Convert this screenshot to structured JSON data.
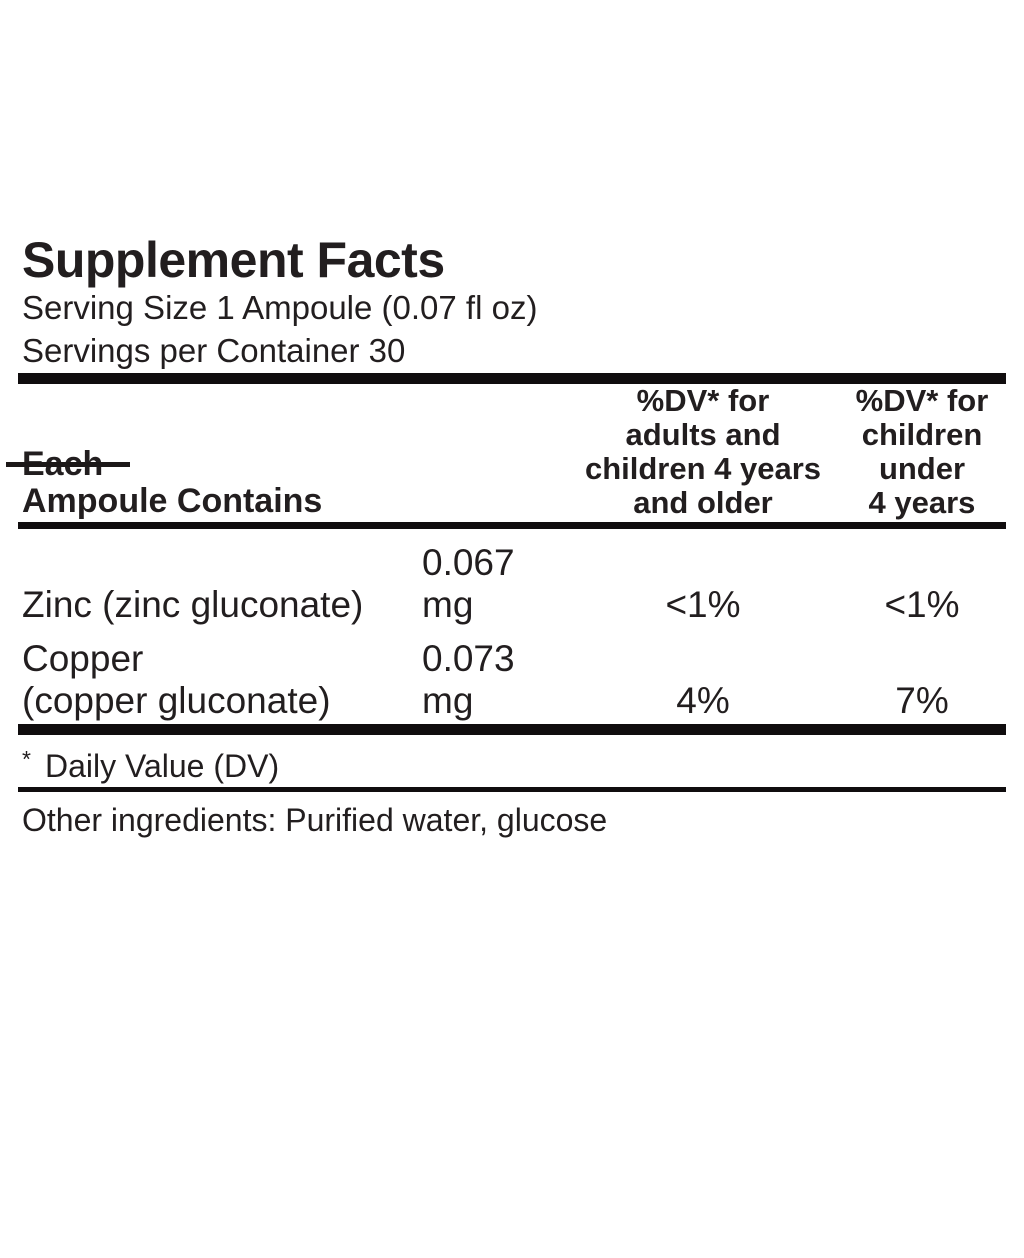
{
  "colors": {
    "background": "#ffffff",
    "text": "#221e1f",
    "rule": "#100d0e"
  },
  "label": {
    "title": "Supplement Facts",
    "serving_size": "Serving Size 1 Ampoule (0.07 fl oz)",
    "servings_per_container": "Servings per Container 30"
  },
  "table": {
    "header": {
      "ingredient_col": "Each\nAmpoule Contains",
      "dv_adults_col": "%DV* for\nadults and\nchildren 4 years\nand older",
      "dv_children_col": "%DV* for\nchildren\nunder\n4 years"
    },
    "rows": [
      {
        "name": "Zinc (zinc gluconate)",
        "amount": "0.067 mg",
        "dv_adults": "<1%",
        "dv_children": "<1%"
      },
      {
        "name": "Copper\n(copper gluconate)",
        "amount": "0.073 mg",
        "dv_adults": "4%",
        "dv_children": "7%"
      }
    ]
  },
  "footnote": {
    "marker": "*",
    "text": "Daily Value (DV)"
  },
  "other_ingredients": "Other ingredients: Purified water, glucose"
}
